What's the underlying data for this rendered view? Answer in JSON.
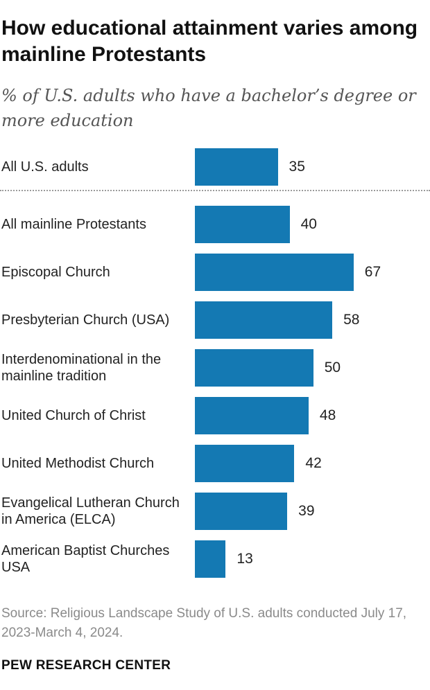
{
  "chart_data": {
    "type": "bar",
    "orientation": "horizontal",
    "title": "How educational attainment varies among mainline Protestants",
    "subtitle": "% of U.S. adults who have a bachelor’s degree or more education",
    "categories": [
      "All U.S. adults",
      "All mainline Protestants",
      "Episcopal Church",
      "Presbyterian Church (USA)",
      "Interdenominational in the mainline tradition",
      "United Church of Christ",
      "United Methodist Church",
      "Evangelical Lutheran Church in America (ELCA)",
      "American Baptist Churches USA"
    ],
    "values": [
      35,
      40,
      67,
      58,
      50,
      48,
      42,
      39,
      13
    ],
    "xlim": [
      0,
      100
    ],
    "grid": false,
    "xlabel": "",
    "ylabel": "",
    "bar_color": "#1479b3"
  },
  "footer": {
    "source": "Source: Religious Landscape Study of U.S. adults conducted July 17, 2023-March 4, 2024.",
    "brand": "PEW RESEARCH CENTER"
  }
}
